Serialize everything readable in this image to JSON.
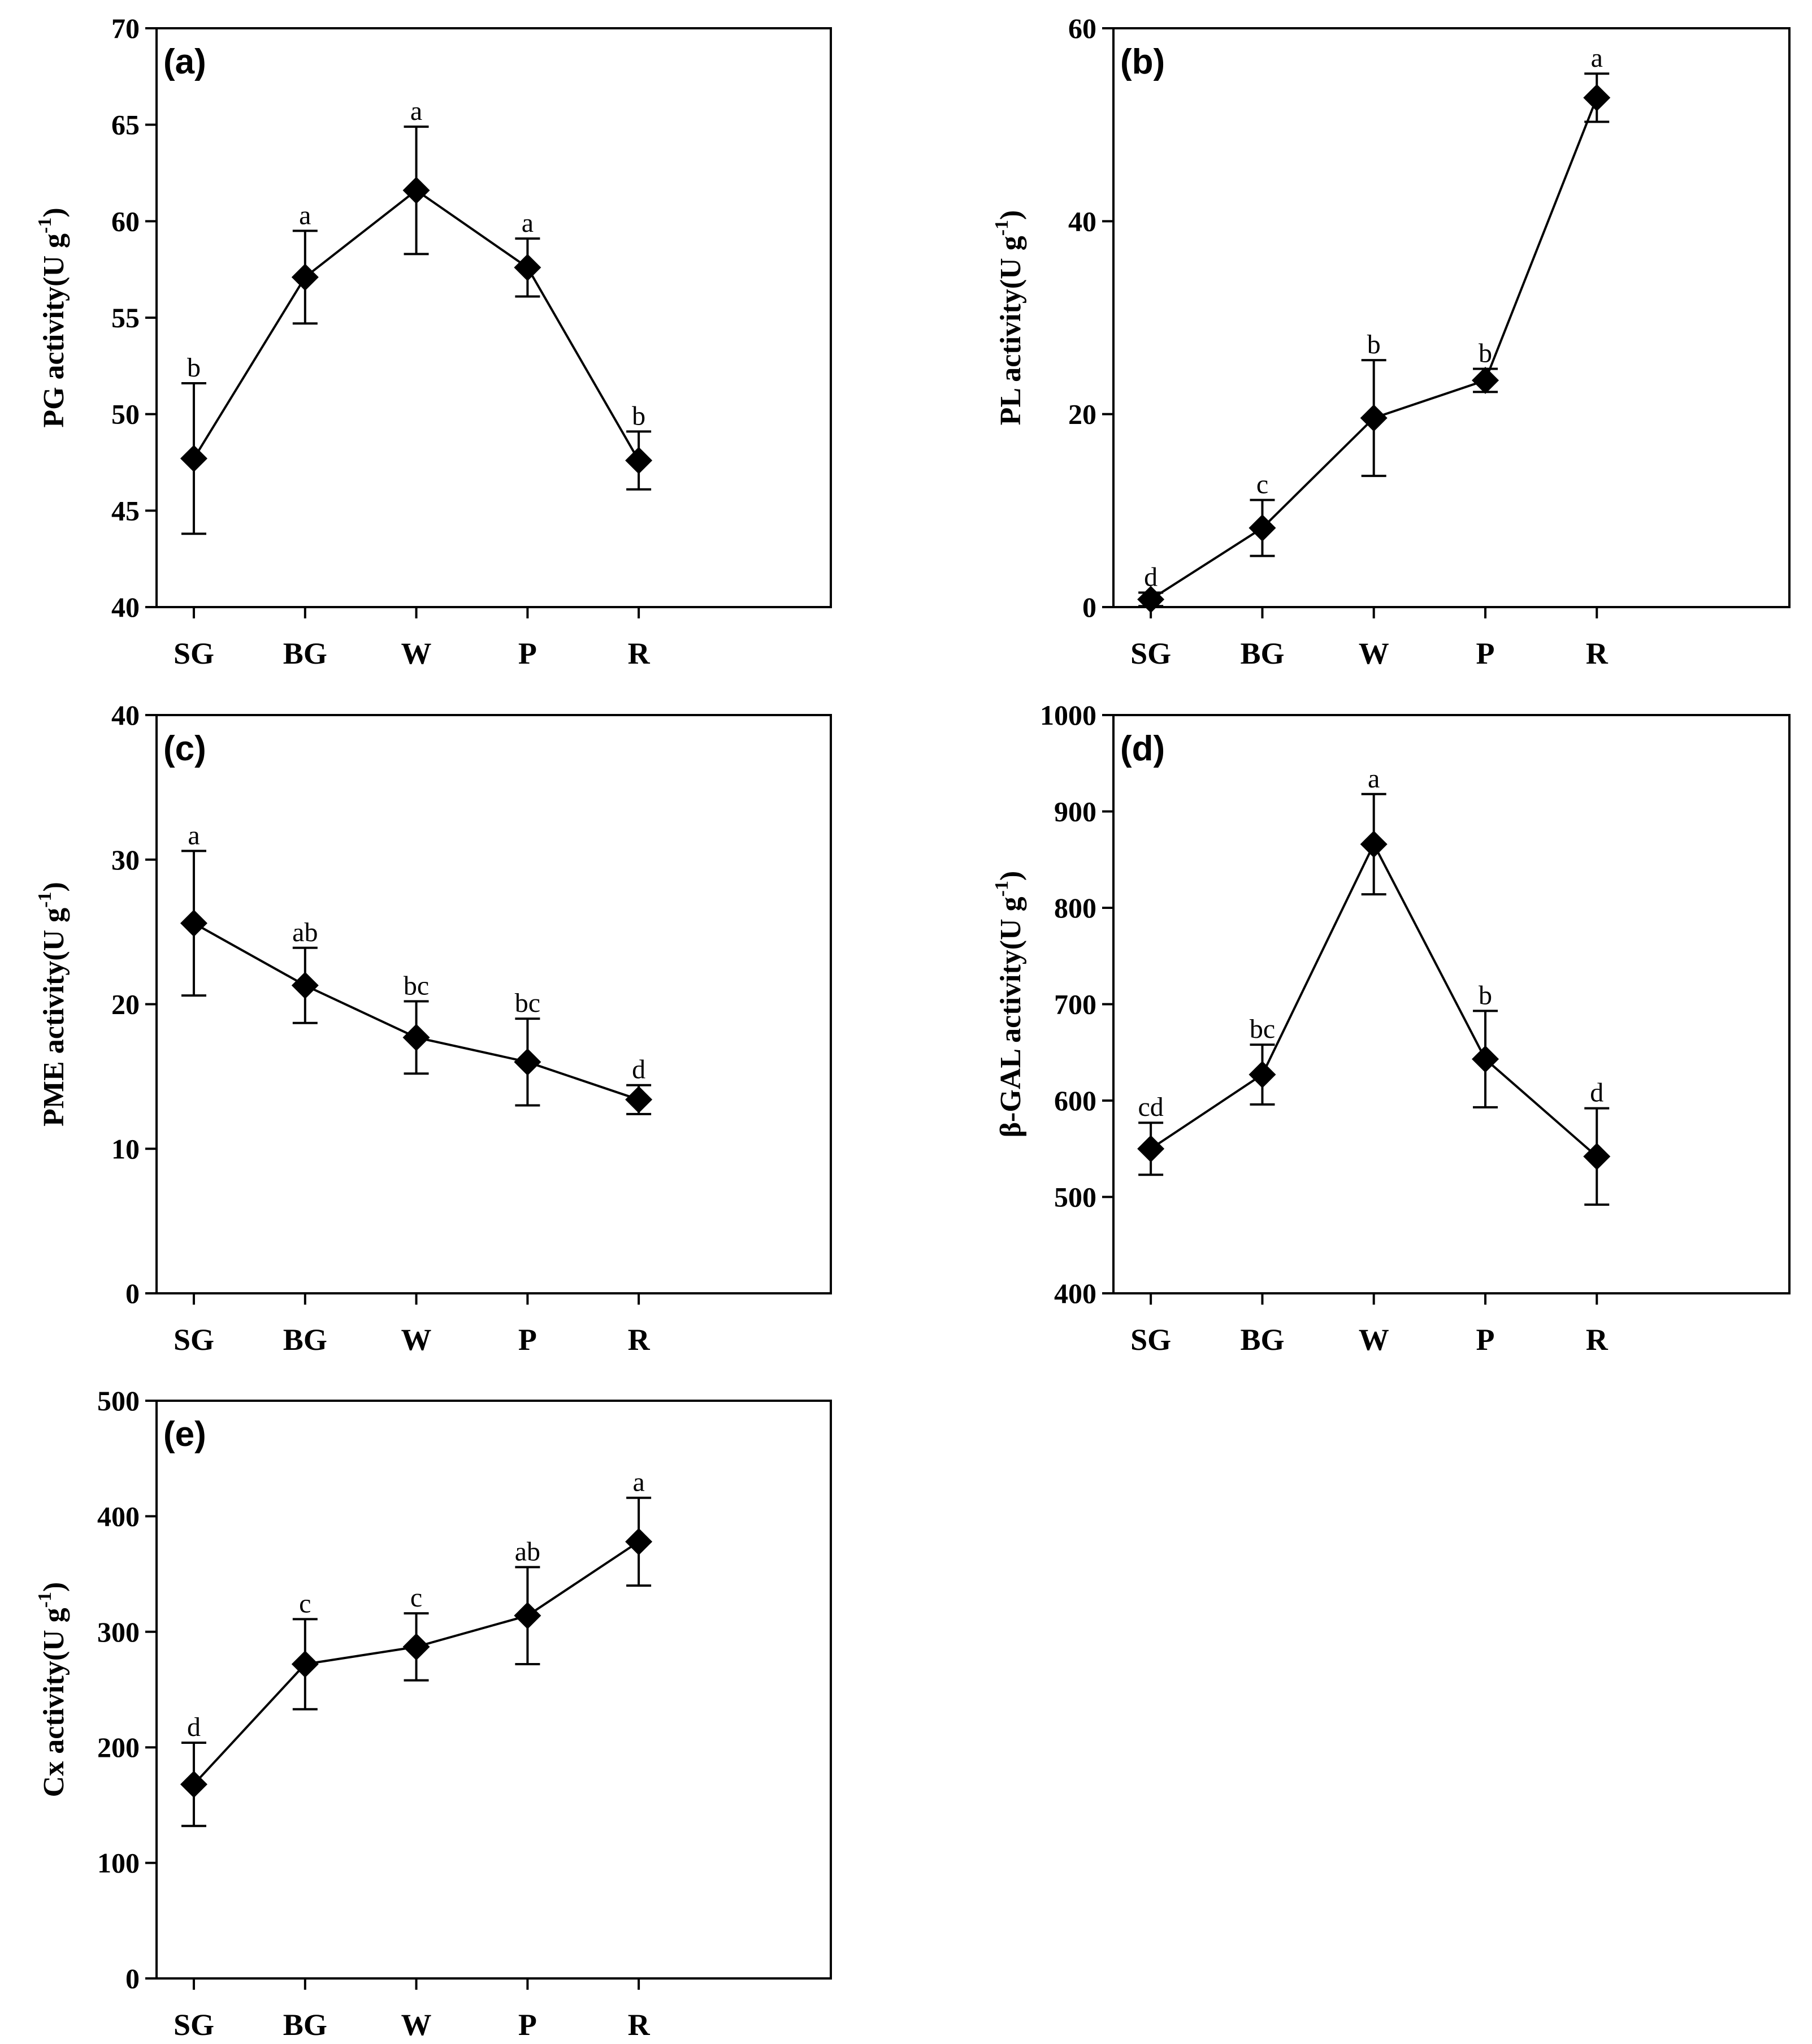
{
  "chart_data": [
    {
      "type": "line",
      "panel_label": "(a)",
      "ylabel": "PG activity(U g",
      "ylabel_sup": "-1",
      "ylabel_close": ")",
      "categories": [
        "SG",
        "BG",
        "W",
        "P",
        "R"
      ],
      "values": [
        47.7,
        57.1,
        61.6,
        57.6,
        47.6
      ],
      "errors": [
        3.9,
        2.4,
        3.3,
        1.5,
        1.5
      ],
      "significance": [
        "b",
        "a",
        "a",
        "a",
        "b"
      ],
      "ylim": [
        40,
        70
      ],
      "yticks": [
        40,
        45,
        50,
        55,
        60,
        65,
        70
      ],
      "marker": "diamond",
      "color": "#000000",
      "grid": false
    },
    {
      "type": "line",
      "panel_label": "(b)",
      "ylabel": "PL activity(U g",
      "ylabel_sup": "-1",
      "ylabel_close": ")",
      "categories": [
        "SG",
        "BG",
        "W",
        "P",
        "R"
      ],
      "values": [
        0.8,
        8.2,
        19.6,
        23.5,
        52.8
      ],
      "errors": [
        0.7,
        2.9,
        6.0,
        1.2,
        2.5
      ],
      "significance": [
        "d",
        "c",
        "b",
        "b",
        "a"
      ],
      "ylim": [
        0,
        60
      ],
      "yticks": [
        0,
        20,
        40,
        60
      ],
      "marker": "diamond",
      "color": "#000000",
      "grid": false
    },
    {
      "type": "line",
      "panel_label": "(c)",
      "ylabel": "PME activity(U g",
      "ylabel_sup": "-1",
      "ylabel_close": ")",
      "categories": [
        "SG",
        "BG",
        "W",
        "P",
        "R"
      ],
      "values": [
        25.6,
        21.3,
        17.7,
        16.0,
        13.4
      ],
      "errors": [
        5.0,
        2.6,
        2.5,
        3.0,
        1.0
      ],
      "significance": [
        "a",
        "ab",
        "bc",
        "bc",
        "d"
      ],
      "ylim": [
        0,
        40
      ],
      "yticks": [
        0,
        10,
        20,
        30,
        40
      ],
      "marker": "diamond",
      "color": "#000000",
      "grid": false
    },
    {
      "type": "line",
      "panel_label": "(d)",
      "ylabel": "β-GAL activity(U g",
      "ylabel_sup": "-1",
      "ylabel_close": ")",
      "categories": [
        "SG",
        "BG",
        "W",
        "P",
        "R"
      ],
      "values": [
        550,
        627,
        866,
        643,
        542
      ],
      "errors": [
        27,
        31,
        52,
        50,
        50
      ],
      "significance": [
        "cd",
        "bc",
        "a",
        "b",
        "d"
      ],
      "ylim": [
        400,
        1000
      ],
      "yticks": [
        400,
        500,
        600,
        700,
        800,
        900,
        1000
      ],
      "marker": "diamond",
      "color": "#000000",
      "grid": false
    },
    {
      "type": "line",
      "panel_label": "(e)",
      "ylabel": "Cx activity(U g",
      "ylabel_sup": "-1",
      "ylabel_close": ")",
      "categories": [
        "SG",
        "BG",
        "W",
        "P",
        "R"
      ],
      "values": [
        168,
        272,
        287,
        314,
        378
      ],
      "errors": [
        36,
        39,
        29,
        42,
        38
      ],
      "significance": [
        "d",
        "c",
        "c",
        "ab",
        "a"
      ],
      "ylim": [
        0,
        500
      ],
      "yticks": [
        0,
        100,
        200,
        300,
        400,
        500
      ],
      "marker": "diamond",
      "color": "#000000",
      "grid": false
    }
  ]
}
